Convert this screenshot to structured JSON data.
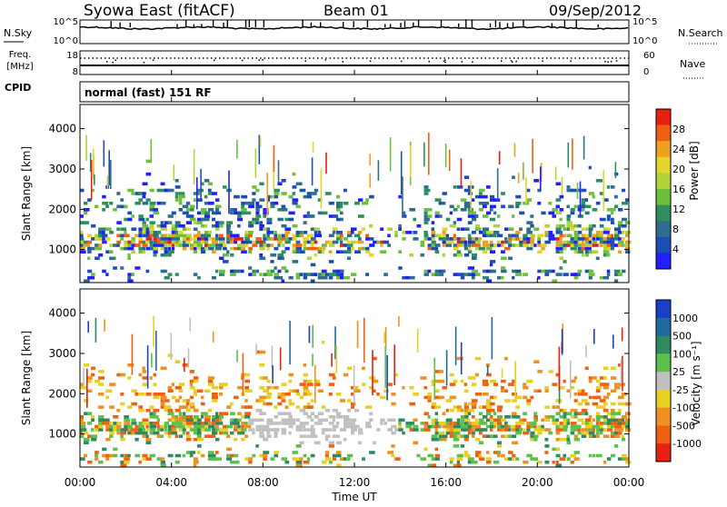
{
  "header": {
    "station": "Syowa East (fitACF)",
    "beam": "Beam 01",
    "date": "09/Sep/2012"
  },
  "status_panels": {
    "nsky": {
      "label": "N.Sky",
      "right_label": "N.Search",
      "left_ticks": [
        "10^5",
        "10^0"
      ],
      "right_ticks": [
        "10^5",
        "10^0"
      ]
    },
    "freq": {
      "label_line1": "Freq.",
      "label_line2": "[MHz]",
      "right_label": "Nave",
      "left_ticks": [
        "18",
        "8"
      ],
      "right_ticks": [
        "60",
        "0"
      ]
    },
    "cpid": {
      "label": "CPID",
      "text": "normal (fast) 151 RF"
    }
  },
  "chart_data": [
    {
      "type": "heatmap",
      "quantity": "power",
      "ylabel": "Slant Range [km]",
      "yticks": [
        "1000",
        "2000",
        "3000",
        "4000"
      ],
      "ylim": [
        180,
        4600
      ],
      "colorbar": {
        "label": "Power [dB]",
        "ticks": [
          "4",
          "8",
          "12",
          "16",
          "20",
          "24",
          "28"
        ],
        "colors": [
          "#1f1fff",
          "#1c4fb4",
          "#2d6e8e",
          "#2e8f5e",
          "#6cc03a",
          "#b2d43a",
          "#e5d42a",
          "#f0a020",
          "#f06010",
          "#e82010"
        ]
      }
    },
    {
      "type": "heatmap",
      "quantity": "velocity",
      "ylabel": "Slant Range [km]",
      "yticks": [
        "1000",
        "2000",
        "3000",
        "4000"
      ],
      "ylim": [
        180,
        4600
      ],
      "colorbar": {
        "label": "Velocity [m s⁻¹]",
        "ticks": [
          "1000",
          "500",
          "100",
          "25",
          "-25",
          "-100",
          "-500",
          "-1000"
        ],
        "colors": [
          "#1a3fc8",
          "#1f6aa0",
          "#2e8a60",
          "#5cc04a",
          "#c0c0c0",
          "#e8d020",
          "#f09020",
          "#f06010",
          "#e82010"
        ]
      }
    }
  ],
  "x_axis": {
    "label": "Time UT",
    "ticks": [
      "00:00",
      "04:00",
      "08:00",
      "12:00",
      "16:00",
      "20:00",
      "00:00"
    ]
  }
}
